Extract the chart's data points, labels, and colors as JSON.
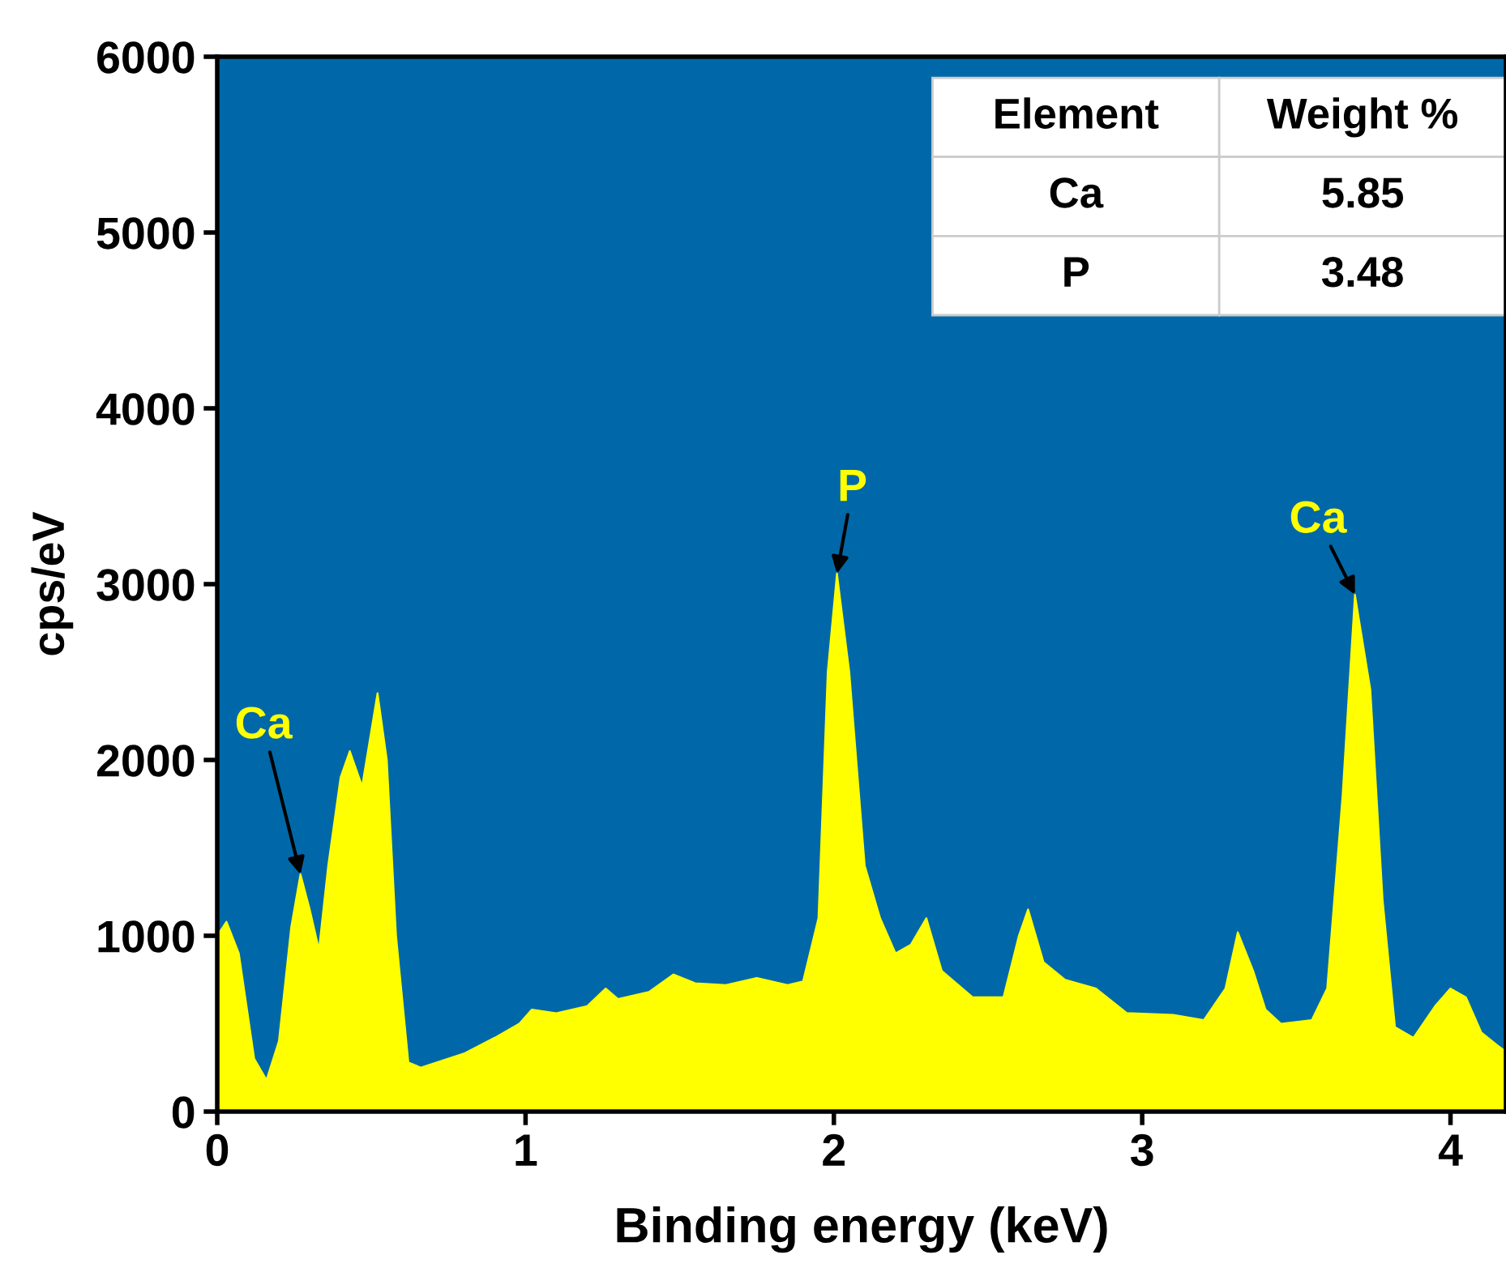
{
  "chart_data": {
    "type": "area",
    "xlabel": "Binding energy (keV)",
    "ylabel": "cps/eV",
    "xlim": [
      0,
      4.18
    ],
    "xticks": [
      0,
      1,
      2,
      3,
      4
    ],
    "ylim": [
      0,
      6000
    ],
    "yticks": [
      0,
      1000,
      2000,
      3000,
      4000,
      5000,
      6000
    ],
    "grid": false,
    "legend": false,
    "series": [
      {
        "color": "#ffff00",
        "x": [
          0,
          0.03,
          0.07,
          0.12,
          0.16,
          0.2,
          0.24,
          0.27,
          0.3,
          0.33,
          0.36,
          0.4,
          0.43,
          0.47,
          0.52,
          0.55,
          0.58,
          0.62,
          0.66,
          0.8,
          0.9,
          0.98,
          1.02,
          1.1,
          1.2,
          1.26,
          1.3,
          1.4,
          1.48,
          1.55,
          1.65,
          1.75,
          1.85,
          1.9,
          1.95,
          1.98,
          2.01,
          2.05,
          2.1,
          2.15,
          2.2,
          2.25,
          2.3,
          2.35,
          2.45,
          2.55,
          2.6,
          2.63,
          2.68,
          2.75,
          2.85,
          2.95,
          3.1,
          3.2,
          3.27,
          3.31,
          3.36,
          3.4,
          3.45,
          3.55,
          3.6,
          3.65,
          3.69,
          3.74,
          3.78,
          3.82,
          3.88,
          3.95,
          4.0,
          4.05,
          4.1,
          4.15,
          4.18
        ],
        "values": [
          1000,
          1080,
          900,
          300,
          180,
          400,
          1050,
          1350,
          1150,
          920,
          1400,
          1900,
          2050,
          1850,
          2380,
          2000,
          1000,
          280,
          250,
          330,
          420,
          500,
          580,
          560,
          600,
          700,
          640,
          680,
          780,
          730,
          720,
          760,
          720,
          740,
          1100,
          2500,
          3060,
          2500,
          1400,
          1100,
          900,
          950,
          1100,
          800,
          650,
          650,
          1000,
          1150,
          850,
          750,
          700,
          560,
          550,
          520,
          700,
          1020,
          800,
          580,
          500,
          520,
          700,
          1800,
          2940,
          2400,
          1200,
          480,
          420,
          600,
          700,
          650,
          450,
          380,
          340
        ]
      }
    ],
    "annotations": [
      {
        "text": "Ca",
        "x": 0.27,
        "y": 1350
      },
      {
        "text": "P",
        "x": 2.01,
        "y": 3060
      },
      {
        "text": "Ca",
        "x": 3.69,
        "y": 2940
      },
      "Element",
      "Weight %",
      "Ca",
      "5.85",
      "P",
      "3.48"
    ]
  }
}
